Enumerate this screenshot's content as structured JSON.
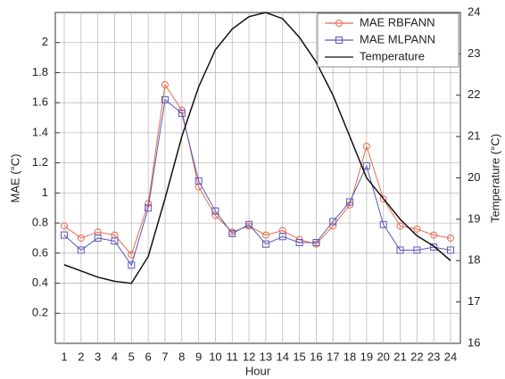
{
  "chart_data": {
    "type": "line",
    "xlabel": "Hour",
    "ylabel": "MAE (°C)",
    "y2label": "Temperature (°C)",
    "categories": [
      "1",
      "2",
      "3",
      "4",
      "5",
      "6",
      "7",
      "8",
      "9",
      "10",
      "11",
      "12",
      "13",
      "14",
      "15",
      "16",
      "17",
      "18",
      "19",
      "20",
      "21",
      "22",
      "23",
      "24"
    ],
    "series": [
      {
        "name": "MAE RBFANN",
        "color": "#e8694e",
        "marker": "circle",
        "values": [
          0.78,
          0.7,
          0.74,
          0.72,
          0.59,
          0.93,
          1.72,
          1.55,
          1.04,
          0.85,
          0.74,
          0.78,
          0.72,
          0.75,
          0.69,
          0.66,
          0.78,
          0.92,
          1.31,
          0.96,
          0.78,
          0.76,
          0.72,
          0.7
        ]
      },
      {
        "name": "MAE MLPANN",
        "color": "#5a5ab8",
        "marker": "square",
        "values": [
          0.72,
          0.62,
          0.7,
          0.68,
          0.52,
          0.9,
          1.62,
          1.53,
          1.08,
          0.88,
          0.73,
          0.79,
          0.66,
          0.71,
          0.67,
          0.67,
          0.81,
          0.94,
          1.18,
          0.79,
          0.62,
          0.62,
          0.64,
          0.62
        ]
      },
      {
        "name": "Temperature",
        "color": "#111111",
        "marker": "none",
        "axis": "y2",
        "values": [
          17.9,
          17.75,
          17.6,
          17.5,
          17.45,
          18.1,
          19.5,
          21.0,
          22.2,
          23.1,
          23.6,
          23.9,
          24.0,
          23.85,
          23.4,
          22.8,
          22.0,
          21.0,
          20.0,
          19.5,
          19.0,
          18.6,
          18.35,
          18.0
        ]
      }
    ],
    "ylim": [
      0,
      2.2
    ],
    "yticks": [
      0.2,
      0.4,
      0.6,
      0.8,
      1,
      1.2,
      1.4,
      1.6,
      1.8,
      2
    ],
    "y2lim": [
      16,
      24
    ],
    "y2ticks": [
      16,
      17,
      18,
      19,
      20,
      21,
      22,
      23,
      24
    ],
    "grid": true,
    "legend": "upper right"
  }
}
